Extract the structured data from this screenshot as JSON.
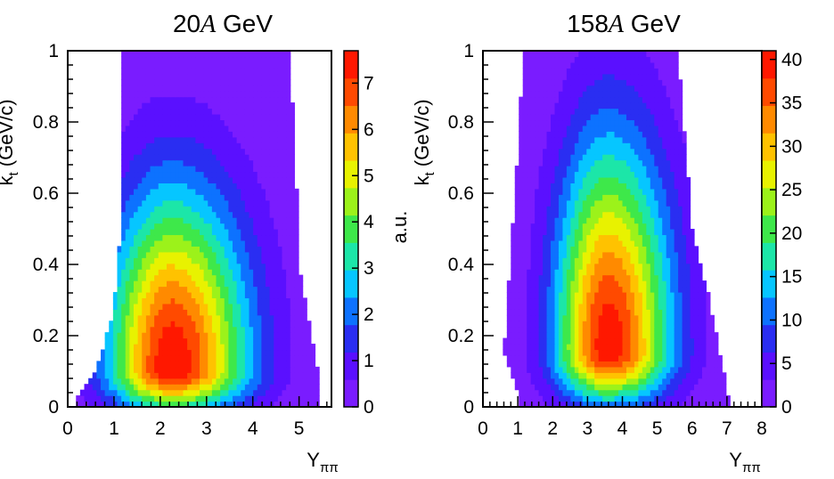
{
  "chart_data": [
    {
      "type": "heatmap",
      "title_prefix": "20",
      "title_italic": "A",
      "title_suffix": " GeV",
      "xlabel_main": "Y",
      "xlabel_sub": "ππ",
      "ylabel_main": "k",
      "ylabel_sub": "t",
      "ylabel_unit": " (GeV/c)",
      "xlim": [
        0,
        5.7
      ],
      "ylim": [
        0,
        1
      ],
      "x_ticks": [
        "0",
        "1",
        "2",
        "3",
        "4",
        "5"
      ],
      "y_ticks": [
        "0",
        "0.2",
        "0.4",
        "0.6",
        "0.8",
        "1"
      ],
      "z_range": [
        0,
        7.7
      ],
      "z_ticks": [
        "0",
        "1",
        "2",
        "3",
        "4",
        "5",
        "6",
        "7"
      ],
      "z_label": "a.u.",
      "peak": {
        "y": 2.25,
        "kt": 0.11,
        "value": 7.6
      },
      "filled_region_kt_y": [
        [
          0.02,
          0.15,
          5.45
        ],
        [
          0.1,
          0.6,
          5.4
        ],
        [
          0.25,
          0.95,
          5.2
        ],
        [
          0.4,
          1.1,
          5.0
        ],
        [
          0.6,
          1.15,
          4.95
        ],
        [
          1.0,
          1.2,
          4.8
        ]
      ]
    },
    {
      "type": "heatmap",
      "title_prefix": "158",
      "title_italic": "A",
      "title_suffix": " GeV",
      "xlabel_main": "Y",
      "xlabel_sub": "ππ",
      "ylabel_main": "k",
      "ylabel_sub": "t",
      "ylabel_unit": " (GeV/c)",
      "xlim": [
        0,
        8
      ],
      "ylim": [
        0,
        1
      ],
      "x_ticks": [
        "0",
        "1",
        "2",
        "3",
        "4",
        "5",
        "6",
        "7",
        "8"
      ],
      "y_ticks": [
        "0",
        "0.2",
        "0.4",
        "0.6",
        "0.8",
        "1"
      ],
      "z_range": [
        0,
        41
      ],
      "z_ticks": [
        "0",
        "5",
        "10",
        "15",
        "20",
        "25",
        "30",
        "35",
        "40"
      ],
      "z_label": "a.u.",
      "peak": {
        "y": 3.6,
        "kt": 0.16,
        "value": 40
      },
      "filled_region_kt_y": [
        [
          0.02,
          1.05,
          7.05
        ],
        [
          0.15,
          0.6,
          6.8
        ],
        [
          0.3,
          0.7,
          6.5
        ],
        [
          0.5,
          0.85,
          6.0
        ],
        [
          0.8,
          1.05,
          5.75
        ],
        [
          1.0,
          1.15,
          5.6
        ]
      ]
    }
  ],
  "colors": {
    "palette": [
      "#7a1cff",
      "#5a10ff",
      "#2a2ef2",
      "#0d72ff",
      "#06c6ff",
      "#1ce6a8",
      "#3ee84a",
      "#9cf21a",
      "#e8f200",
      "#ffc200",
      "#ff8a00",
      "#ff4a00",
      "#ff1800"
    ]
  }
}
